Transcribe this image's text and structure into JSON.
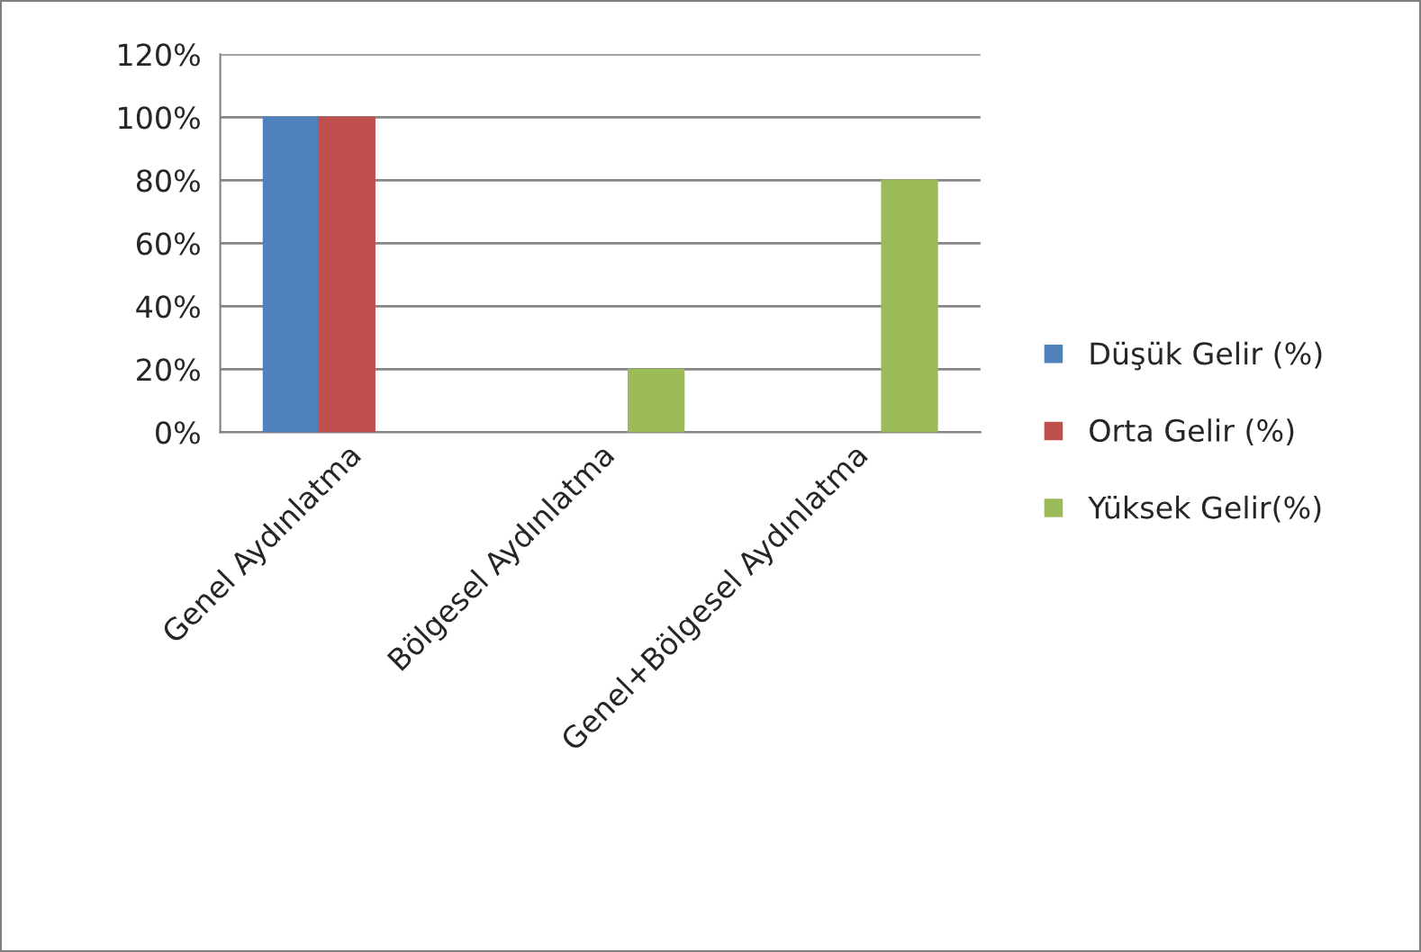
{
  "chart_data": {
    "type": "bar",
    "categories": [
      "Genel Aydınlatma",
      "Bölgesel Aydınlatma",
      "Genel+Bölgesel Aydınlatma"
    ],
    "series": [
      {
        "name": "Düşük Gelir (%)",
        "color": "#4f81bd",
        "values": [
          100,
          null,
          null
        ]
      },
      {
        "name": "Orta Gelir (%)",
        "color": "#c0504d",
        "values": [
          100,
          null,
          null
        ]
      },
      {
        "name": "Yüksek Gelir(%)",
        "color": "#9bbb59",
        "values": [
          null,
          20,
          80
        ]
      }
    ],
    "ylim": [
      0,
      120
    ],
    "yticks": [
      {
        "value": 0,
        "label": "0%"
      },
      {
        "value": 20,
        "label": "20%"
      },
      {
        "value": 40,
        "label": "40%"
      },
      {
        "value": 60,
        "label": "60%"
      },
      {
        "value": 80,
        "label": "80%"
      },
      {
        "value": 100,
        "label": "100%"
      },
      {
        "value": 120,
        "label": "120%"
      }
    ],
    "grid": "y",
    "legend": "right"
  }
}
